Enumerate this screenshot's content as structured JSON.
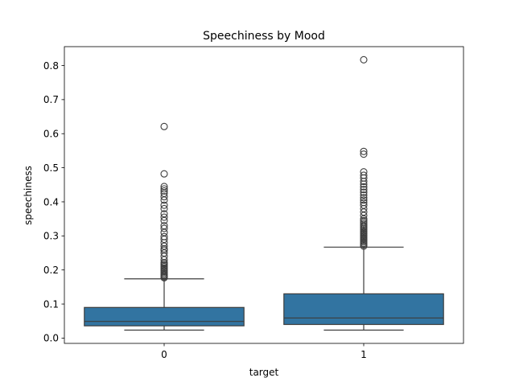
{
  "chart_data": {
    "type": "box",
    "title": "Speechiness by Mood",
    "xlabel": "target",
    "ylabel": "speechiness",
    "categories": [
      "0",
      "1"
    ],
    "ylim": [
      -0.0155,
      0.8555
    ],
    "yticks": [
      0.0,
      0.1,
      0.2,
      0.3,
      0.4,
      0.5,
      0.6,
      0.7,
      0.8
    ],
    "ytick_labels": [
      "0.0",
      "0.1",
      "0.2",
      "0.3",
      "0.4",
      "0.5",
      "0.6",
      "0.7",
      "0.8"
    ],
    "grid": false,
    "colors": {
      "box_fill": "#3274a1",
      "line": "#3d3d3d"
    },
    "boxes": [
      {
        "category": "0",
        "whisker_low": 0.0235,
        "q1": 0.036,
        "median": 0.049,
        "q3": 0.09,
        "whisker_high": 0.174,
        "outliers": [
          0.177,
          0.18,
          0.183,
          0.186,
          0.19,
          0.194,
          0.198,
          0.202,
          0.206,
          0.21,
          0.214,
          0.218,
          0.222,
          0.23,
          0.24,
          0.25,
          0.258,
          0.262,
          0.27,
          0.28,
          0.29,
          0.298,
          0.31,
          0.322,
          0.33,
          0.345,
          0.355,
          0.365,
          0.38,
          0.39,
          0.405,
          0.415,
          0.425,
          0.432,
          0.438,
          0.445,
          0.482,
          0.621
        ]
      },
      {
        "category": "1",
        "whisker_low": 0.0235,
        "q1": 0.04,
        "median": 0.059,
        "q3": 0.13,
        "whisker_high": 0.267,
        "outliers": [
          0.27,
          0.274,
          0.278,
          0.282,
          0.286,
          0.29,
          0.294,
          0.298,
          0.302,
          0.306,
          0.31,
          0.314,
          0.318,
          0.322,
          0.326,
          0.33,
          0.335,
          0.34,
          0.345,
          0.35,
          0.36,
          0.37,
          0.38,
          0.39,
          0.398,
          0.405,
          0.412,
          0.42,
          0.428,
          0.436,
          0.444,
          0.452,
          0.46,
          0.47,
          0.478,
          0.488,
          0.54,
          0.548,
          0.817
        ]
      }
    ]
  }
}
